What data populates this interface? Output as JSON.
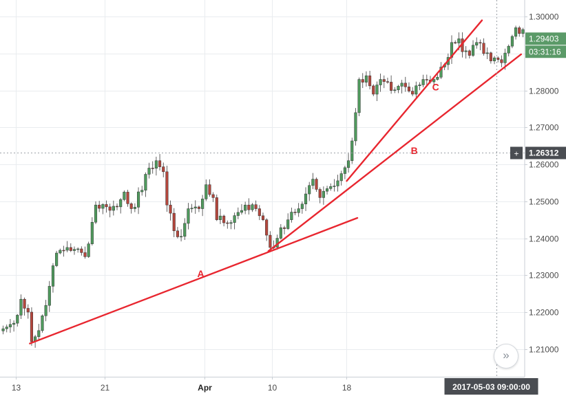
{
  "chart_data": {
    "type": "candlestick",
    "ylim": [
      1.2025,
      1.3045
    ],
    "yticks": [
      "1.30000",
      "1.29000",
      "1.28000",
      "1.27000",
      "1.26000",
      "1.25000",
      "1.24000",
      "1.23000",
      "1.22000",
      "1.21000"
    ],
    "ytick_values": [
      1.3,
      1.29,
      1.28,
      1.27,
      1.26,
      1.25,
      1.24,
      1.23,
      1.22,
      1.21
    ],
    "xticks": [
      {
        "label": "13",
        "bar": 4
      },
      {
        "label": "21",
        "bar": 29
      },
      {
        "label": "Apr",
        "bar": 57
      },
      {
        "label": "10",
        "bar": 76
      },
      {
        "label": "18",
        "bar": 97
      }
    ],
    "price_badge": {
      "value": "1.29403",
      "countdown": "03:31:16",
      "color": "#5b9a68"
    },
    "crosshair": {
      "price": "1.26312",
      "time": "2017-05-03 09:00:00",
      "bar": 139
    },
    "colors": {
      "up": "#4f9a5d",
      "down": "#b5473d",
      "trendline": "#e8262f",
      "grid": "#e9ecef"
    },
    "annotations": [
      {
        "text": "A",
        "bar": 56,
        "price": 1.2295
      },
      {
        "text": "B",
        "bar": 116,
        "price": 1.2628
      },
      {
        "text": "C",
        "bar": 122,
        "price": 1.28
      }
    ],
    "trendlines": [
      {
        "from": {
          "bar": 8,
          "price": 1.2115
        },
        "to": {
          "bar": 100,
          "price": 1.2455
        }
      },
      {
        "from": {
          "bar": 75,
          "price": 1.2365
        },
        "to": {
          "bar": 146,
          "price": 1.2898
        }
      },
      {
        "from": {
          "bar": 97,
          "price": 1.2555
        },
        "to": {
          "bar": 135,
          "price": 1.299
        }
      }
    ],
    "anchors": [
      [
        0,
        1.2155
      ],
      [
        3,
        1.217
      ],
      [
        5,
        1.2235
      ],
      [
        7,
        1.22
      ],
      [
        8,
        1.212
      ],
      [
        10,
        1.215
      ],
      [
        13,
        1.227
      ],
      [
        15,
        1.236
      ],
      [
        18,
        1.2375
      ],
      [
        20,
        1.237
      ],
      [
        23,
        1.235
      ],
      [
        26,
        1.249
      ],
      [
        29,
        1.2485
      ],
      [
        32,
        1.2485
      ],
      [
        34,
        1.2525
      ],
      [
        36,
        1.248
      ],
      [
        39,
        1.253
      ],
      [
        41,
        1.259
      ],
      [
        43,
        1.261
      ],
      [
        45,
        1.258
      ],
      [
        46,
        1.249
      ],
      [
        48,
        1.242
      ],
      [
        50,
        1.2405
      ],
      [
        52,
        1.248
      ],
      [
        55,
        1.248
      ],
      [
        57,
        1.2545
      ],
      [
        59,
        1.251
      ],
      [
        60,
        1.245
      ],
      [
        63,
        1.244
      ],
      [
        66,
        1.247
      ],
      [
        68,
        1.249
      ],
      [
        71,
        1.248
      ],
      [
        73,
        1.245
      ],
      [
        75,
        1.2375
      ],
      [
        77,
        1.24
      ],
      [
        80,
        1.245
      ],
      [
        83,
        1.248
      ],
      [
        85,
        1.252
      ],
      [
        87,
        1.256
      ],
      [
        89,
        1.251
      ],
      [
        92,
        1.254
      ],
      [
        95,
        1.2575
      ],
      [
        97,
        1.261
      ],
      [
        99,
        1.274
      ],
      [
        100,
        1.283
      ],
      [
        102,
        1.284
      ],
      [
        104,
        1.279
      ],
      [
        106,
        1.283
      ],
      [
        109,
        1.28
      ],
      [
        112,
        1.282
      ],
      [
        115,
        1.279
      ],
      [
        118,
        1.283
      ],
      [
        121,
        1.283
      ],
      [
        124,
        1.287
      ],
      [
        126,
        1.293
      ],
      [
        128,
        1.294
      ],
      [
        129,
        1.2905
      ],
      [
        131,
        1.2895
      ],
      [
        133,
        1.293
      ],
      [
        135,
        1.29
      ],
      [
        137,
        1.288
      ],
      [
        140,
        1.2875
      ],
      [
        142,
        1.292
      ],
      [
        144,
        1.297
      ],
      [
        146,
        1.2965
      ],
      [
        147,
        1.294
      ]
    ]
  }
}
